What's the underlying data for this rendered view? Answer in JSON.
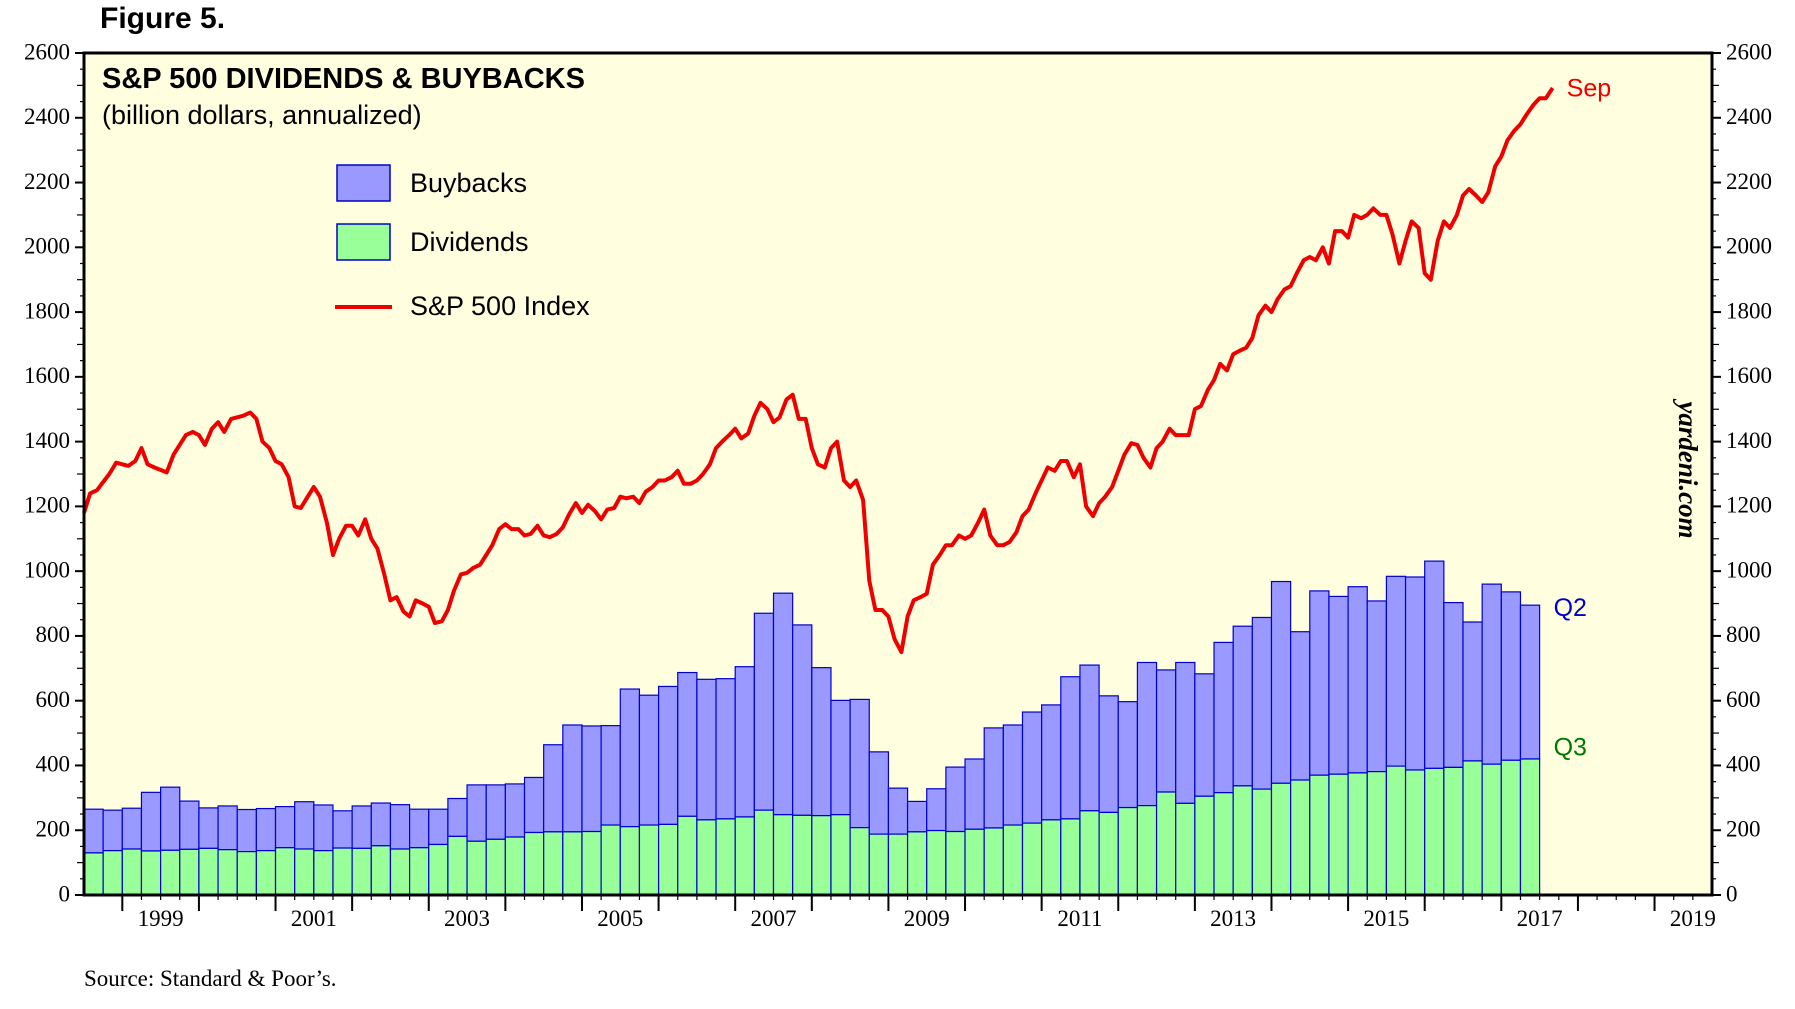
{
  "figure_label": "Figure 5.",
  "source": "Source: Standard & Poor’s.",
  "watermark": "yardeni.com",
  "colors": {
    "plot_bg": "#FFFFE0",
    "buybacks_fill": "#9999FF",
    "buybacks_stroke": "#0000CC",
    "dividends_fill": "#99FF99",
    "dividends_stroke": "#0000CC",
    "index_line": "#EE0000",
    "q2_label": "#0000CC",
    "q3_label": "#007700",
    "sep_label": "#EE0000"
  },
  "chart_data": {
    "type": "bar",
    "title": "S&P 500 DIVIDENDS & BUYBACKS",
    "subtitle": "(billion dollars, annualized)",
    "ylim": [
      0,
      2600
    ],
    "y_ticks": [
      "0",
      "200",
      "400",
      "600",
      "800",
      "1000",
      "1200",
      "1400",
      "1600",
      "1800",
      "2000",
      "2200",
      "2400",
      "2600"
    ],
    "x_range": [
      1998.5,
      2019.75
    ],
    "x_tick_labels": [
      "1999",
      "2001",
      "2003",
      "2005",
      "2007",
      "2009",
      "2011",
      "2013",
      "2015",
      "2017",
      "2019"
    ],
    "legend": [
      {
        "name": "Buybacks",
        "kind": "box"
      },
      {
        "name": "Dividends",
        "kind": "box"
      },
      {
        "name": "S&P 500 Index",
        "kind": "line"
      }
    ],
    "stacked_series": {
      "quarters_start": "1998Q3",
      "dividends": [
        130,
        137,
        142,
        136,
        138,
        141,
        144,
        140,
        134,
        137,
        146,
        142,
        137,
        145,
        144,
        152,
        142,
        146,
        156,
        181,
        166,
        172,
        179,
        193,
        195,
        195,
        196,
        216,
        211,
        216,
        218,
        243,
        232,
        235,
        241,
        262,
        248,
        246,
        245,
        248,
        208,
        188,
        188,
        195,
        199,
        196,
        203,
        207,
        216,
        222,
        232,
        235,
        260,
        255,
        270,
        276,
        318,
        283,
        305,
        316,
        337,
        327,
        345,
        355,
        370,
        373,
        377,
        381,
        398,
        386,
        391,
        394,
        414,
        404,
        416,
        420
      ],
      "totals": [
        265,
        262,
        268,
        317,
        333,
        290,
        269,
        275,
        264,
        267,
        273,
        288,
        278,
        260,
        275,
        284,
        279,
        265,
        265,
        298,
        340,
        340,
        343,
        363,
        464,
        525,
        522,
        523,
        636,
        617,
        644,
        687,
        666,
        668,
        705,
        870,
        932,
        834,
        702,
        601,
        604,
        442,
        330,
        289,
        328,
        395,
        420,
        516,
        525,
        565,
        587,
        674,
        710,
        615,
        597,
        718,
        695,
        718,
        683,
        780,
        830,
        857,
        968,
        813,
        939,
        922,
        952,
        908,
        984,
        982,
        1031,
        903,
        843,
        960,
        936,
        895
      ]
    },
    "annotations": [
      {
        "text": "Q2",
        "series": "Buybacks",
        "value": 895
      },
      {
        "text": "Q3",
        "series": "Dividends",
        "value": 420
      },
      {
        "text": "Sep",
        "series": "S&P 500 Index",
        "value": 2492
      }
    ],
    "index_series": {
      "name": "S&P 500 Index",
      "points": [
        [
          1998.5,
          1180
        ],
        [
          1998.58,
          1240
        ],
        [
          1998.67,
          1250
        ],
        [
          1998.83,
          1300
        ],
        [
          1998.92,
          1335
        ],
        [
          1999.08,
          1325
        ],
        [
          1999.17,
          1340
        ],
        [
          1999.25,
          1380
        ],
        [
          1999.33,
          1330
        ],
        [
          1999.42,
          1320
        ],
        [
          1999.58,
          1305
        ],
        [
          1999.67,
          1360
        ],
        [
          1999.83,
          1420
        ],
        [
          1999.92,
          1430
        ],
        [
          2000.0,
          1420
        ],
        [
          2000.08,
          1390
        ],
        [
          2000.17,
          1440
        ],
        [
          2000.25,
          1460
        ],
        [
          2000.33,
          1430
        ],
        [
          2000.42,
          1470
        ],
        [
          2000.58,
          1480
        ],
        [
          2000.67,
          1490
        ],
        [
          2000.75,
          1470
        ],
        [
          2000.83,
          1400
        ],
        [
          2000.92,
          1380
        ],
        [
          2001.0,
          1340
        ],
        [
          2001.08,
          1330
        ],
        [
          2001.17,
          1290
        ],
        [
          2001.25,
          1200
        ],
        [
          2001.33,
          1195
        ],
        [
          2001.42,
          1230
        ],
        [
          2001.5,
          1260
        ],
        [
          2001.58,
          1230
        ],
        [
          2001.67,
          1150
        ],
        [
          2001.75,
          1050
        ],
        [
          2001.83,
          1100
        ],
        [
          2001.92,
          1140
        ],
        [
          2002.0,
          1140
        ],
        [
          2002.08,
          1110
        ],
        [
          2002.17,
          1160
        ],
        [
          2002.25,
          1100
        ],
        [
          2002.33,
          1070
        ],
        [
          2002.42,
          990
        ],
        [
          2002.5,
          910
        ],
        [
          2002.58,
          920
        ],
        [
          2002.67,
          875
        ],
        [
          2002.75,
          860
        ],
        [
          2002.83,
          910
        ],
        [
          2002.92,
          900
        ],
        [
          2003.0,
          890
        ],
        [
          2003.08,
          840
        ],
        [
          2003.17,
          845
        ],
        [
          2003.25,
          880
        ],
        [
          2003.33,
          940
        ],
        [
          2003.42,
          990
        ],
        [
          2003.5,
          995
        ],
        [
          2003.58,
          1010
        ],
        [
          2003.67,
          1020
        ],
        [
          2003.75,
          1050
        ],
        [
          2003.83,
          1080
        ],
        [
          2003.92,
          1130
        ],
        [
          2004.0,
          1145
        ],
        [
          2004.08,
          1130
        ],
        [
          2004.17,
          1130
        ],
        [
          2004.25,
          1110
        ],
        [
          2004.33,
          1115
        ],
        [
          2004.42,
          1140
        ],
        [
          2004.5,
          1110
        ],
        [
          2004.58,
          1105
        ],
        [
          2004.67,
          1115
        ],
        [
          2004.75,
          1135
        ],
        [
          2004.83,
          1175
        ],
        [
          2004.92,
          1210
        ],
        [
          2005.0,
          1180
        ],
        [
          2005.08,
          1205
        ],
        [
          2005.17,
          1185
        ],
        [
          2005.25,
          1160
        ],
        [
          2005.33,
          1190
        ],
        [
          2005.42,
          1195
        ],
        [
          2005.5,
          1230
        ],
        [
          2005.58,
          1225
        ],
        [
          2005.67,
          1230
        ],
        [
          2005.75,
          1210
        ],
        [
          2005.83,
          1245
        ],
        [
          2005.92,
          1260
        ],
        [
          2006.0,
          1280
        ],
        [
          2006.08,
          1280
        ],
        [
          2006.17,
          1290
        ],
        [
          2006.25,
          1310
        ],
        [
          2006.33,
          1270
        ],
        [
          2006.42,
          1270
        ],
        [
          2006.5,
          1280
        ],
        [
          2006.58,
          1300
        ],
        [
          2006.67,
          1330
        ],
        [
          2006.75,
          1380
        ],
        [
          2006.83,
          1400
        ],
        [
          2006.92,
          1420
        ],
        [
          2007.0,
          1440
        ],
        [
          2007.08,
          1410
        ],
        [
          2007.17,
          1425
        ],
        [
          2007.25,
          1480
        ],
        [
          2007.33,
          1520
        ],
        [
          2007.42,
          1500
        ],
        [
          2007.5,
          1460
        ],
        [
          2007.58,
          1475
        ],
        [
          2007.67,
          1530
        ],
        [
          2007.75,
          1545
        ],
        [
          2007.83,
          1470
        ],
        [
          2007.92,
          1470
        ],
        [
          2008.0,
          1380
        ],
        [
          2008.08,
          1330
        ],
        [
          2008.17,
          1320
        ],
        [
          2008.25,
          1380
        ],
        [
          2008.33,
          1400
        ],
        [
          2008.42,
          1280
        ],
        [
          2008.5,
          1260
        ],
        [
          2008.58,
          1280
        ],
        [
          2008.67,
          1220
        ],
        [
          2008.75,
          970
        ],
        [
          2008.83,
          880
        ],
        [
          2008.92,
          880
        ],
        [
          2009.0,
          860
        ],
        [
          2009.08,
          790
        ],
        [
          2009.17,
          750
        ],
        [
          2009.25,
          860
        ],
        [
          2009.33,
          910
        ],
        [
          2009.42,
          920
        ],
        [
          2009.5,
          930
        ],
        [
          2009.58,
          1020
        ],
        [
          2009.67,
          1050
        ],
        [
          2009.75,
          1080
        ],
        [
          2009.83,
          1080
        ],
        [
          2009.92,
          1110
        ],
        [
          2010.0,
          1100
        ],
        [
          2010.08,
          1110
        ],
        [
          2010.17,
          1150
        ],
        [
          2010.25,
          1190
        ],
        [
          2010.33,
          1110
        ],
        [
          2010.42,
          1080
        ],
        [
          2010.5,
          1080
        ],
        [
          2010.58,
          1090
        ],
        [
          2010.67,
          1120
        ],
        [
          2010.75,
          1170
        ],
        [
          2010.83,
          1190
        ],
        [
          2010.92,
          1240
        ],
        [
          2011.0,
          1280
        ],
        [
          2011.08,
          1320
        ],
        [
          2011.17,
          1310
        ],
        [
          2011.25,
          1340
        ],
        [
          2011.33,
          1340
        ],
        [
          2011.42,
          1290
        ],
        [
          2011.5,
          1330
        ],
        [
          2011.58,
          1200
        ],
        [
          2011.67,
          1170
        ],
        [
          2011.75,
          1210
        ],
        [
          2011.83,
          1230
        ],
        [
          2011.92,
          1260
        ],
        [
          2012.0,
          1310
        ],
        [
          2012.08,
          1360
        ],
        [
          2012.17,
          1395
        ],
        [
          2012.25,
          1390
        ],
        [
          2012.33,
          1350
        ],
        [
          2012.42,
          1320
        ],
        [
          2012.5,
          1380
        ],
        [
          2012.58,
          1400
        ],
        [
          2012.67,
          1440
        ],
        [
          2012.75,
          1420
        ],
        [
          2012.83,
          1420
        ],
        [
          2012.92,
          1420
        ],
        [
          2013.0,
          1500
        ],
        [
          2013.08,
          1510
        ],
        [
          2013.17,
          1560
        ],
        [
          2013.25,
          1590
        ],
        [
          2013.33,
          1640
        ],
        [
          2013.42,
          1620
        ],
        [
          2013.5,
          1670
        ],
        [
          2013.58,
          1680
        ],
        [
          2013.67,
          1690
        ],
        [
          2013.75,
          1720
        ],
        [
          2013.83,
          1790
        ],
        [
          2013.92,
          1820
        ],
        [
          2014.0,
          1800
        ],
        [
          2014.08,
          1840
        ],
        [
          2014.17,
          1870
        ],
        [
          2014.25,
          1880
        ],
        [
          2014.33,
          1920
        ],
        [
          2014.42,
          1960
        ],
        [
          2014.5,
          1970
        ],
        [
          2014.58,
          1960
        ],
        [
          2014.67,
          2000
        ],
        [
          2014.75,
          1950
        ],
        [
          2014.83,
          2050
        ],
        [
          2014.92,
          2050
        ],
        [
          2015.0,
          2030
        ],
        [
          2015.08,
          2100
        ],
        [
          2015.17,
          2090
        ],
        [
          2015.25,
          2100
        ],
        [
          2015.33,
          2120
        ],
        [
          2015.42,
          2100
        ],
        [
          2015.5,
          2100
        ],
        [
          2015.58,
          2040
        ],
        [
          2015.67,
          1950
        ],
        [
          2015.75,
          2020
        ],
        [
          2015.83,
          2080
        ],
        [
          2015.92,
          2060
        ],
        [
          2016.0,
          1920
        ],
        [
          2016.08,
          1900
        ],
        [
          2016.17,
          2020
        ],
        [
          2016.25,
          2080
        ],
        [
          2016.33,
          2060
        ],
        [
          2016.42,
          2100
        ],
        [
          2016.5,
          2160
        ],
        [
          2016.58,
          2180
        ],
        [
          2016.67,
          2160
        ],
        [
          2016.75,
          2140
        ],
        [
          2016.83,
          2170
        ],
        [
          2016.92,
          2250
        ],
        [
          2017.0,
          2280
        ],
        [
          2017.08,
          2330
        ],
        [
          2017.17,
          2360
        ],
        [
          2017.25,
          2380
        ],
        [
          2017.33,
          2410
        ],
        [
          2017.42,
          2440
        ],
        [
          2017.5,
          2460
        ],
        [
          2017.58,
          2460
        ],
        [
          2017.67,
          2492
        ]
      ]
    }
  }
}
